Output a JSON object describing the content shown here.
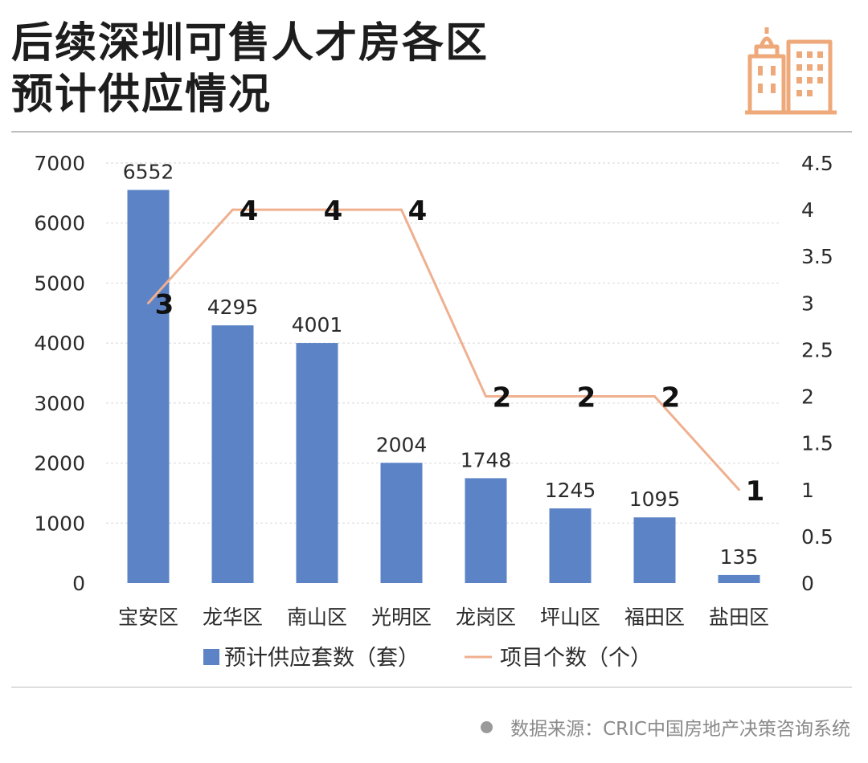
{
  "header": {
    "title_line1": "后续深圳可售人才房各区",
    "title_line2": "预计供应情况"
  },
  "colors": {
    "bar": "#5b83c6",
    "line": "#efb08f",
    "icon": "#eea97a",
    "grid": "#d7d7d7"
  },
  "chart_data": {
    "type": "bar",
    "title": "",
    "categories": [
      "宝安区",
      "龙华区",
      "南山区",
      "光明区",
      "龙岗区",
      "坪山区",
      "福田区",
      "盐田区"
    ],
    "series": [
      {
        "name": "预计供应套数（套）",
        "type": "bar",
        "axis": "left",
        "values": [
          6552,
          4295,
          4001,
          2004,
          1748,
          1245,
          1095,
          135
        ],
        "labels": [
          "6552",
          "4295",
          "4001",
          "2004",
          "1748",
          "1245",
          "1095",
          "135"
        ]
      },
      {
        "name": "项目个数（个）",
        "type": "line",
        "axis": "right",
        "values": [
          3,
          4,
          4,
          4,
          2,
          2,
          2,
          1
        ],
        "labels": [
          "3",
          "4",
          "4",
          "4",
          "2",
          "2",
          "2",
          "1"
        ]
      }
    ],
    "y_left": {
      "ylim": [
        0,
        7000
      ],
      "ticks": [
        0,
        1000,
        2000,
        3000,
        4000,
        5000,
        6000,
        7000
      ],
      "tick_labels": [
        "0",
        "1000",
        "2000",
        "3000",
        "4000",
        "5000",
        "6000",
        "7000"
      ]
    },
    "y_right": {
      "ylim": [
        0,
        4.5
      ],
      "ticks": [
        0,
        0.5,
        1,
        1.5,
        2,
        2.5,
        3,
        3.5,
        4,
        4.5
      ],
      "tick_labels": [
        "0",
        "0.5",
        "1",
        "1.5",
        "2",
        "2.5",
        "3",
        "3.5",
        "4",
        "4.5"
      ]
    },
    "grid": "horizontal-dashed",
    "legend_position": "bottom"
  },
  "footer": {
    "source": "数据来源：CRIC中国房地产决策咨询系统"
  }
}
